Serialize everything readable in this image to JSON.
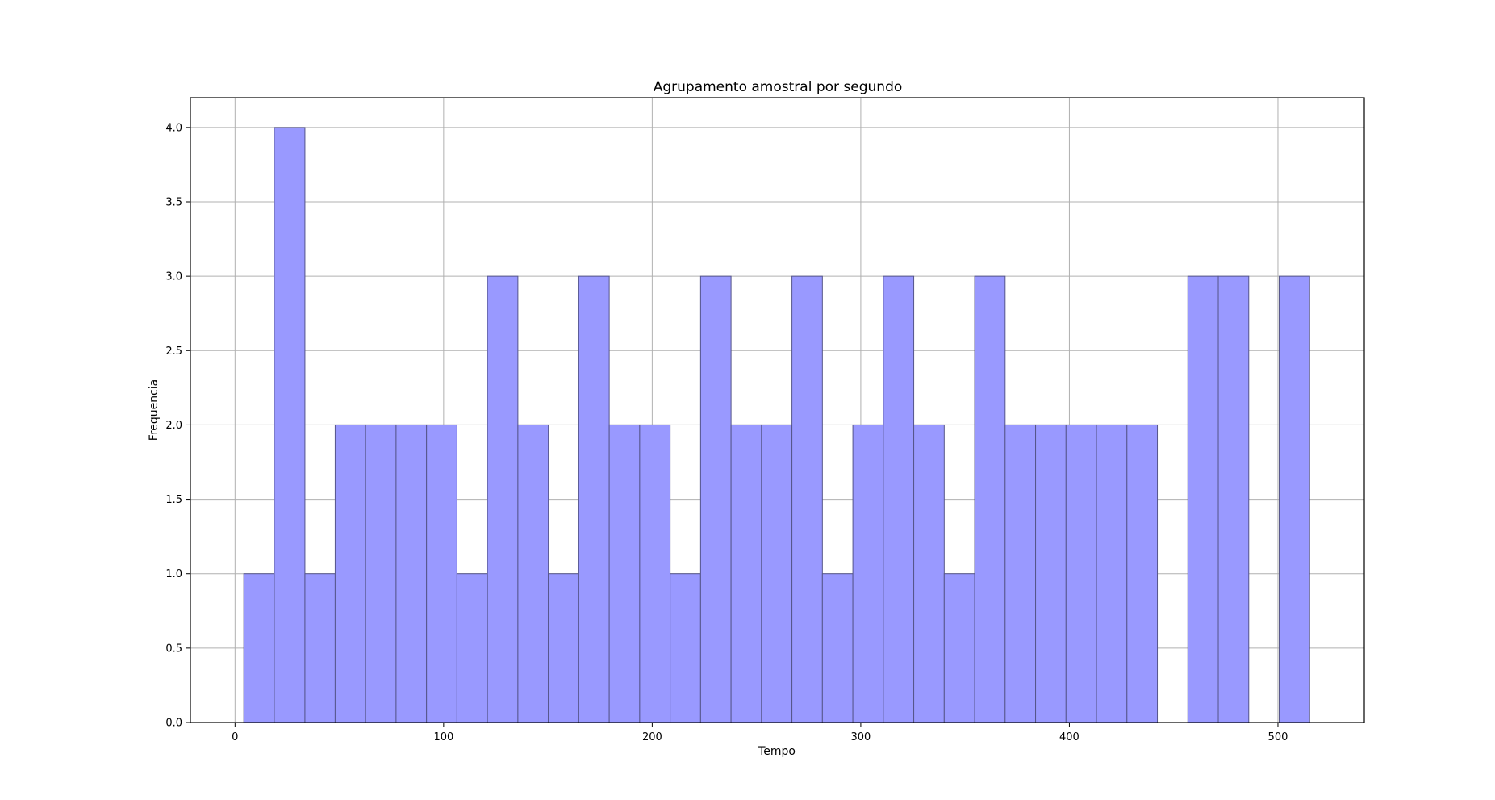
{
  "chart_data": {
    "type": "bar",
    "title": "Agrupamento amostral por segundo",
    "xlabel": "Tempo",
    "ylabel": "Frequencia",
    "xlim": [
      -21.4,
      541.4
    ],
    "ylim": [
      0,
      4.2
    ],
    "xticks": [
      "0",
      "100",
      "200",
      "300",
      "400",
      "500"
    ],
    "yticks": [
      "0.0",
      "0.5",
      "1.0",
      "1.5",
      "2.0",
      "2.5",
      "3.0",
      "3.5",
      "4.0"
    ],
    "grid": true,
    "bar_color": "#9999ff",
    "bar_edge_color": "#55558a",
    "bins": [
      {
        "x0": 4.2,
        "x1": 18.8,
        "count": 1
      },
      {
        "x0": 18.8,
        "x1": 33.5,
        "count": 4
      },
      {
        "x0": 33.5,
        "x1": 48.0,
        "count": 1
      },
      {
        "x0": 48.0,
        "x1": 62.6,
        "count": 2
      },
      {
        "x0": 62.6,
        "x1": 77.2,
        "count": 2
      },
      {
        "x0": 77.2,
        "x1": 91.8,
        "count": 2
      },
      {
        "x0": 91.8,
        "x1": 106.4,
        "count": 2
      },
      {
        "x0": 106.4,
        "x1": 121.0,
        "count": 1
      },
      {
        "x0": 121.0,
        "x1": 135.6,
        "count": 3
      },
      {
        "x0": 135.6,
        "x1": 150.2,
        "count": 2
      },
      {
        "x0": 150.2,
        "x1": 164.8,
        "count": 1
      },
      {
        "x0": 164.8,
        "x1": 179.4,
        "count": 3
      },
      {
        "x0": 179.4,
        "x1": 194.0,
        "count": 2
      },
      {
        "x0": 194.0,
        "x1": 208.6,
        "count": 2
      },
      {
        "x0": 208.6,
        "x1": 223.2,
        "count": 1
      },
      {
        "x0": 223.2,
        "x1": 237.8,
        "count": 3
      },
      {
        "x0": 237.8,
        "x1": 252.4,
        "count": 2
      },
      {
        "x0": 252.4,
        "x1": 267.0,
        "count": 2
      },
      {
        "x0": 267.0,
        "x1": 281.6,
        "count": 3
      },
      {
        "x0": 281.6,
        "x1": 296.2,
        "count": 1
      },
      {
        "x0": 296.2,
        "x1": 310.8,
        "count": 2
      },
      {
        "x0": 310.8,
        "x1": 325.4,
        "count": 3
      },
      {
        "x0": 325.4,
        "x1": 340.0,
        "count": 2
      },
      {
        "x0": 340.0,
        "x1": 354.6,
        "count": 1
      },
      {
        "x0": 354.6,
        "x1": 369.2,
        "count": 3
      },
      {
        "x0": 369.2,
        "x1": 383.8,
        "count": 2
      },
      {
        "x0": 383.8,
        "x1": 398.4,
        "count": 2
      },
      {
        "x0": 398.4,
        "x1": 413.0,
        "count": 2
      },
      {
        "x0": 413.0,
        "x1": 427.6,
        "count": 2
      },
      {
        "x0": 427.6,
        "x1": 442.2,
        "count": 2
      },
      {
        "x0": 442.2,
        "x1": 456.8,
        "count": 0
      },
      {
        "x0": 456.8,
        "x1": 471.4,
        "count": 3
      },
      {
        "x0": 471.4,
        "x1": 486.0,
        "count": 3
      },
      {
        "x0": 486.0,
        "x1": 500.6,
        "count": 0
      },
      {
        "x0": 500.6,
        "x1": 515.2,
        "count": 3
      }
    ]
  }
}
